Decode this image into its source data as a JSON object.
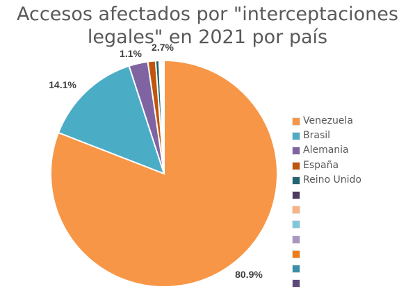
{
  "chart_data": {
    "type": "pie",
    "title_lines": [
      "Accesos afectados por \"interceptaciones",
      "legales\" en 2021 por país"
    ],
    "slices": [
      {
        "name": "Venezuela",
        "value": 80.9,
        "label": "80.9%",
        "color": "#f79646"
      },
      {
        "name": "Brasil",
        "value": 14.1,
        "label": "14.1%",
        "color": "#4bacc6"
      },
      {
        "name": "Alemania",
        "value": 2.7,
        "label": "2.7%",
        "color": "#8064a2"
      },
      {
        "name": "España",
        "value": 1.1,
        "label": "1.1%",
        "color": "#c0560b"
      },
      {
        "name": "Reino Unido",
        "value": 0.5,
        "label": "",
        "color": "#236671"
      },
      {
        "name": "",
        "value": 0.15,
        "label": "",
        "color": "#4d3b62"
      },
      {
        "name": "",
        "value": 0.1,
        "label": "",
        "color": "#f9b383"
      },
      {
        "name": "",
        "value": 0.1,
        "label": "",
        "color": "#7fc7db"
      },
      {
        "name": "",
        "value": 0.1,
        "label": "",
        "color": "#a797c2"
      },
      {
        "name": "",
        "value": 0.1,
        "label": "",
        "color": "#f07c16"
      },
      {
        "name": "",
        "value": 0.1,
        "label": "",
        "color": "#3a8fa8"
      },
      {
        "name": "",
        "value": 0.05,
        "label": "",
        "color": "#5d4a7b"
      }
    ],
    "legend_placement": "right"
  }
}
